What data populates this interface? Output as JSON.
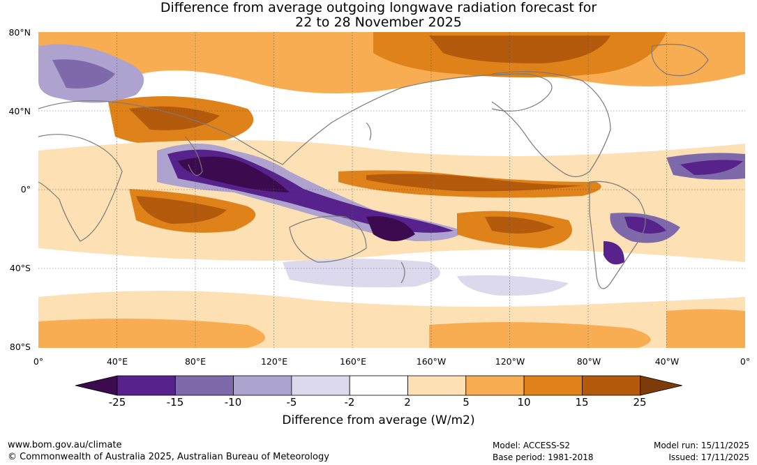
{
  "title": {
    "line1": "Difference from average outgoing longwave radiation forecast for",
    "line2": "22 to 28 November 2025"
  },
  "map": {
    "lat_labels": [
      "80°N",
      "40°N",
      "0°",
      "40°S",
      "80°S"
    ],
    "lon_labels": [
      "0°",
      "40°E",
      "80°E",
      "120°E",
      "160°E",
      "160°W",
      "120°W",
      "80°W",
      "40°W",
      "0°"
    ],
    "land_outline_color": "#7a7a7a",
    "grid_style": "dotted"
  },
  "colorbar": {
    "title": "Difference from average (W/m2)",
    "ticks": [
      "-25",
      "-15",
      "-10",
      "-5",
      "-2",
      "2",
      "5",
      "10",
      "15",
      "25"
    ],
    "colors": [
      "#3b0a4f",
      "#58228c",
      "#7e6aaa",
      "#aea2cf",
      "#dcd9ec",
      "#ffffff",
      "#fde0b4",
      "#f9ad52",
      "#e0821a",
      "#b45a0c",
      "#7e3b0a"
    ]
  },
  "footer": {
    "website": "www.bom.gov.au/climate",
    "copyright": "© Commonwealth of Australia 2025, Australian Bureau of Meteorology",
    "model": "Model: ACCESS-S2",
    "base_period": "Base period: 1981-2018",
    "model_run": "Model run: 15/11/2025",
    "issued": "Issued: 17/11/2025"
  }
}
